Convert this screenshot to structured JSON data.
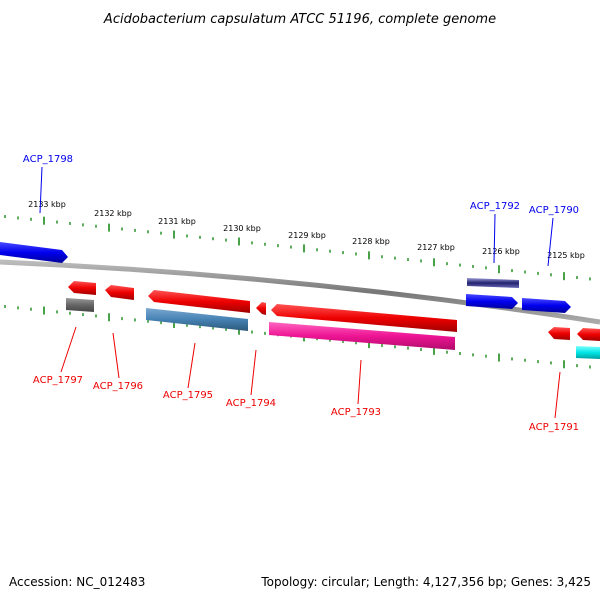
{
  "title": "Acidobacterium capsulatum ATCC 51196, complete genome",
  "footer": {
    "accession": "Accession: NC_012483",
    "topology": "Topology: circular; Length: 4,127,356 bp; Genes: 3,425"
  },
  "scale_labels": [
    "2133 kbp",
    "2132 kbp",
    "2131 kbp",
    "2130 kbp",
    "2129 kbp",
    "2128 kbp",
    "2127 kbp",
    "2126 kbp",
    "2125 kbp"
  ],
  "colors": {
    "forward": "#0000ee",
    "reverse": "#ee0000",
    "backbone": "#888888",
    "ticks": "#1a8a1a"
  },
  "forward_genes": [
    {
      "label": "ACP_1798"
    },
    {
      "label": "ACP_1792"
    },
    {
      "label": "ACP_1790"
    }
  ],
  "reverse_genes": [
    {
      "label": "ACP_1797"
    },
    {
      "label": "ACP_1796"
    },
    {
      "label": "ACP_1795"
    },
    {
      "label": "ACP_1794"
    },
    {
      "label": "ACP_1793"
    },
    {
      "label": "ACP_1791"
    }
  ]
}
